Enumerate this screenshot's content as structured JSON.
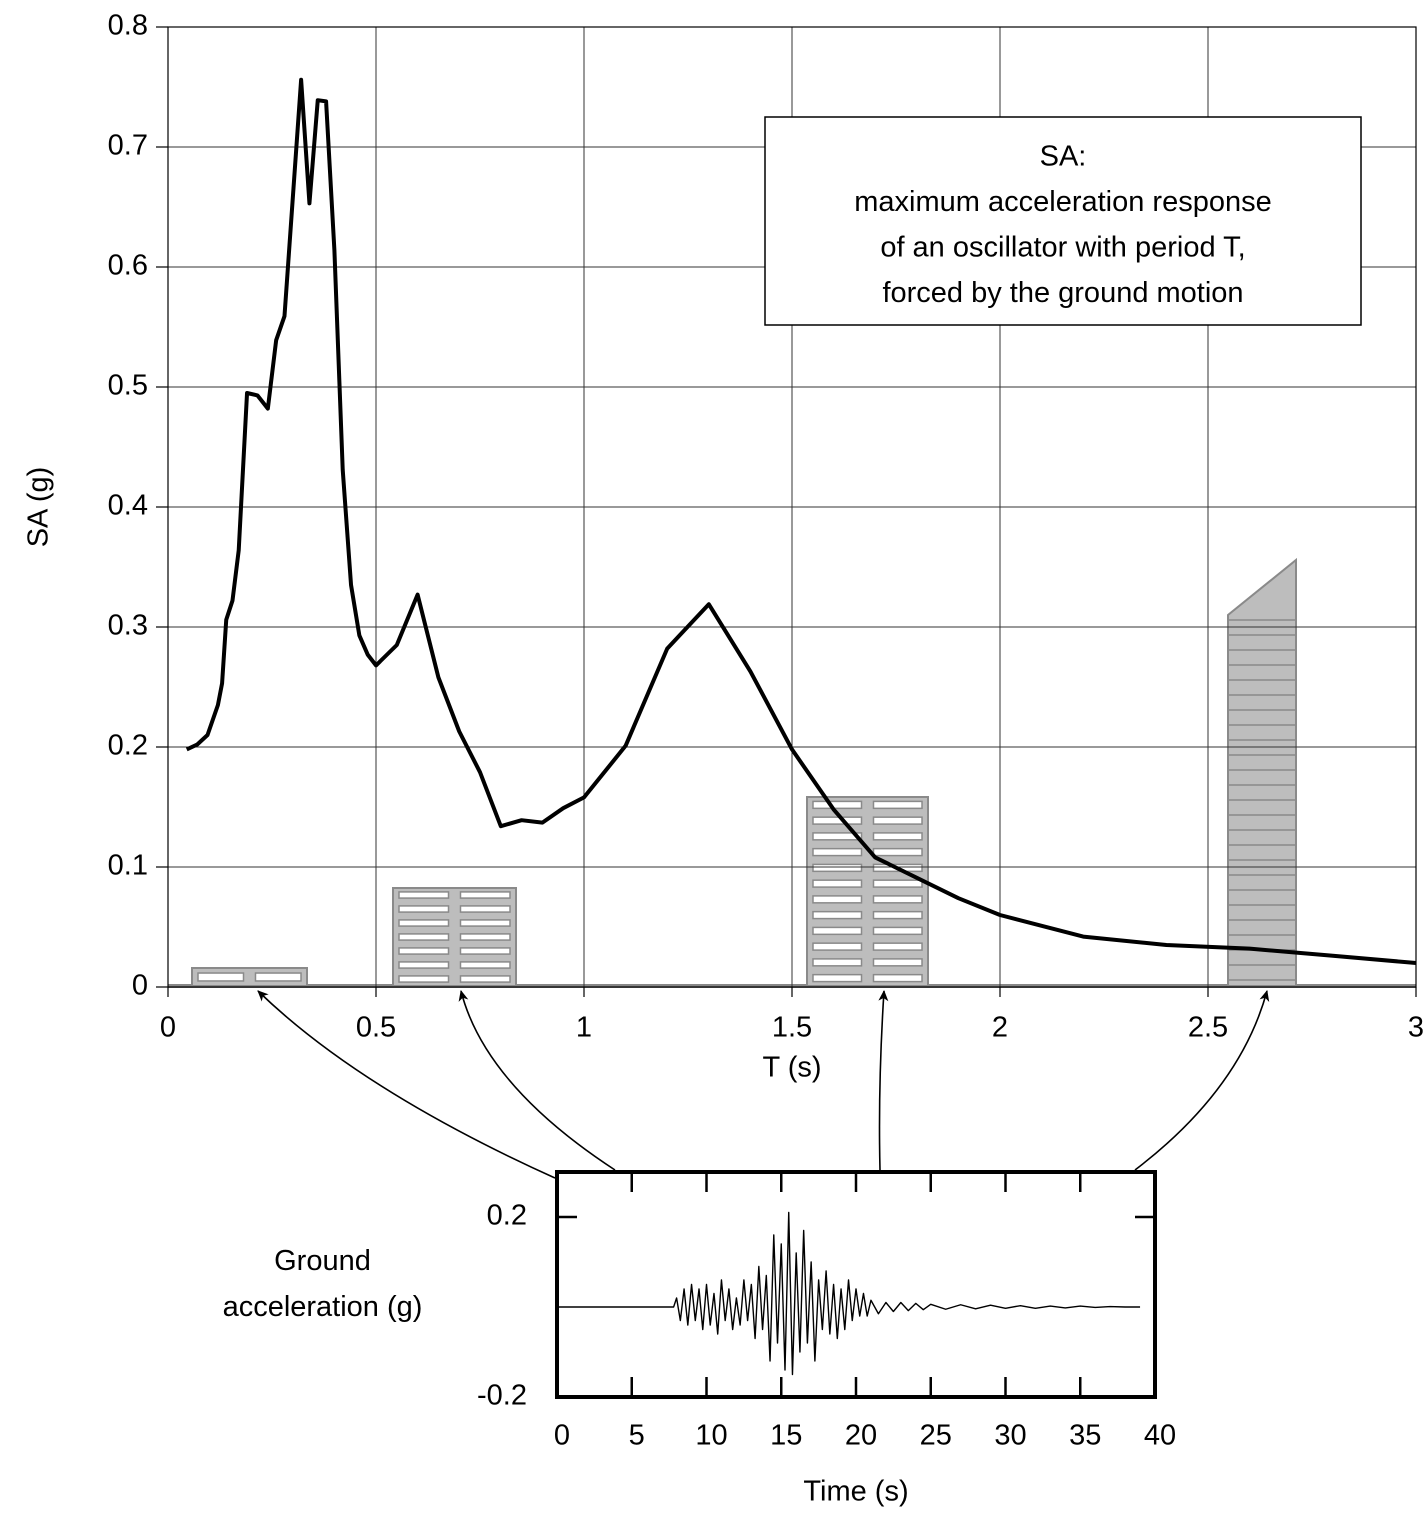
{
  "chart_data": [
    {
      "type": "line",
      "xlabel": "T (s)",
      "ylabel": "SA (g)",
      "annotation": [
        "SA:",
        "maximum acceleration response",
        "of an oscillator with period T,",
        "forced by the ground motion"
      ],
      "x": [
        0.045,
        0.07,
        0.095,
        0.12,
        0.13,
        0.14,
        0.155,
        0.17,
        0.19,
        0.215,
        0.24,
        0.26,
        0.28,
        0.32,
        0.34,
        0.36,
        0.38,
        0.4,
        0.42,
        0.44,
        0.46,
        0.48,
        0.5,
        0.55,
        0.6,
        0.65,
        0.7,
        0.75,
        0.8,
        0.85,
        0.9,
        0.95,
        1,
        1.1,
        1.2,
        1.3,
        1.4,
        1.5,
        1.6,
        1.7,
        1.8,
        1.9,
        2,
        2.2,
        2.4,
        2.6,
        2.8,
        3
      ],
      "values": [
        0.198,
        0.202,
        0.21,
        0.235,
        0.253,
        0.306,
        0.322,
        0.364,
        0.495,
        0.493,
        0.482,
        0.539,
        0.559,
        0.756,
        0.653,
        0.739,
        0.738,
        0.614,
        0.431,
        0.335,
        0.293,
        0.277,
        0.268,
        0.285,
        0.327,
        0.258,
        0.213,
        0.179,
        0.134,
        0.139,
        0.137,
        0.149,
        0.158,
        0.201,
        0.282,
        0.319,
        0.263,
        0.198,
        0.148,
        0.108,
        0.091,
        0.074,
        0.06,
        0.042,
        0.035,
        0.032,
        0.026,
        0.02
      ],
      "color": "#000000",
      "xlim": [
        0,
        3
      ],
      "ylim": [
        0,
        0.8
      ],
      "xticks": [
        0,
        0.5,
        1,
        1.5,
        2,
        2.5,
        3
      ],
      "yticks": [
        0,
        0.1,
        0.2,
        0.3,
        0.4,
        0.5,
        0.6,
        0.7,
        0.8
      ],
      "grid": true
    },
    {
      "type": "line",
      "xlabel": "Time (s)",
      "ylabel": "Ground acceleration (g)",
      "x": [
        0,
        7.8,
        8.0,
        8.25,
        8.5,
        8.75,
        9.0,
        9.25,
        9.5,
        9.75,
        10.0,
        10.25,
        10.5,
        10.75,
        11.0,
        11.25,
        11.5,
        11.75,
        12.0,
        12.25,
        12.5,
        12.75,
        13.0,
        13.25,
        13.5,
        13.75,
        14.0,
        14.25,
        14.5,
        14.75,
        15.0,
        15.25,
        15.5,
        15.75,
        16.0,
        16.25,
        16.5,
        16.75,
        17.0,
        17.25,
        17.5,
        17.75,
        18.0,
        18.25,
        18.5,
        18.75,
        19.0,
        19.25,
        19.5,
        19.75,
        20.0,
        20.25,
        20.5,
        20.75,
        21.0,
        21.5,
        22,
        22.5,
        23,
        23.5,
        24,
        24.5,
        25,
        26,
        27,
        28,
        29,
        30,
        31,
        32,
        33,
        34,
        35,
        36,
        37,
        38,
        39
      ],
      "values": [
        0,
        0,
        0.02,
        -0.03,
        0.04,
        -0.04,
        0.05,
        -0.03,
        0.04,
        -0.05,
        0.05,
        -0.04,
        0.03,
        -0.06,
        0.06,
        -0.03,
        0.04,
        -0.05,
        0.02,
        -0.04,
        0.06,
        -0.03,
        0.05,
        -0.07,
        0.09,
        -0.05,
        0.07,
        -0.12,
        0.16,
        -0.08,
        0.14,
        -0.14,
        0.21,
        -0.15,
        0.12,
        -0.1,
        0.17,
        -0.08,
        0.1,
        -0.12,
        0.06,
        -0.05,
        0.08,
        -0.06,
        0.05,
        -0.07,
        0.04,
        -0.05,
        0.06,
        -0.03,
        0.04,
        -0.02,
        0.03,
        -0.02,
        0.015,
        -0.015,
        0.01,
        -0.01,
        0.01,
        -0.008,
        0.008,
        -0.006,
        0.006,
        -0.005,
        0.005,
        -0.004,
        0.004,
        -0.003,
        0.003,
        -0.003,
        0.002,
        -0.002,
        0.002,
        -0.001,
        0.001,
        0,
        0
      ],
      "color": "#000000",
      "xlim": [
        0,
        40
      ],
      "ylim": [
        -0.2,
        0.3
      ],
      "xticks": [
        0,
        5,
        10,
        15,
        20,
        25,
        30,
        35,
        40
      ],
      "yticks": [
        0.2,
        -0.2
      ],
      "grid": false
    }
  ]
}
